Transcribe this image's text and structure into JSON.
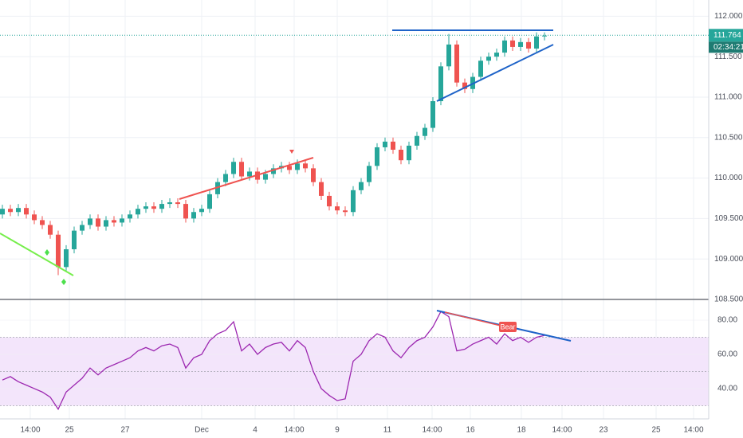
{
  "chart_data": {
    "type": "candlestick",
    "x": [
      0,
      1,
      2,
      3,
      4,
      5,
      6,
      7,
      8,
      9,
      10,
      11,
      12,
      13,
      14,
      15,
      16,
      17,
      18,
      19,
      20,
      21,
      22,
      23,
      24,
      25,
      26,
      27,
      28,
      29,
      30,
      31,
      32,
      33,
      34,
      35,
      36,
      37,
      38,
      39,
      40,
      41,
      42,
      43,
      44,
      45,
      46,
      47,
      48,
      49,
      50,
      51,
      52,
      53,
      54,
      55,
      56,
      57,
      58,
      59,
      60,
      61,
      62,
      63,
      64,
      65,
      66,
      67,
      68
    ],
    "open": [
      109.55,
      109.62,
      109.58,
      109.63,
      109.55,
      109.48,
      109.42,
      109.3,
      108.9,
      109.12,
      109.35,
      109.42,
      109.5,
      109.4,
      109.48,
      109.45,
      109.5,
      109.55,
      109.62,
      109.65,
      109.62,
      109.68,
      109.7,
      109.68,
      109.5,
      109.58,
      109.62,
      109.8,
      109.95,
      110.05,
      110.2,
      110.02,
      110.08,
      109.98,
      110.05,
      110.12,
      110.15,
      110.1,
      110.18,
      110.12,
      109.95,
      109.78,
      109.65,
      109.6,
      109.58,
      109.85,
      109.95,
      110.15,
      110.38,
      110.45,
      110.35,
      110.22,
      110.4,
      110.52,
      110.62,
      110.95,
      111.38,
      111.65,
      111.18,
      111.1,
      111.25,
      111.45,
      111.5,
      111.55,
      111.7,
      111.62,
      111.68,
      111.6,
      111.75
    ],
    "high": [
      109.67,
      109.67,
      109.68,
      109.68,
      109.6,
      109.53,
      109.47,
      109.35,
      109.17,
      109.4,
      109.47,
      109.55,
      109.55,
      109.53,
      109.53,
      109.55,
      109.6,
      109.67,
      109.7,
      109.7,
      109.73,
      109.75,
      109.75,
      109.73,
      109.63,
      109.67,
      109.85,
      110.0,
      110.1,
      110.25,
      110.25,
      110.13,
      110.13,
      110.1,
      110.17,
      110.2,
      110.2,
      110.23,
      110.23,
      110.17,
      110.0,
      109.83,
      109.7,
      109.65,
      109.9,
      110.0,
      110.2,
      110.43,
      110.5,
      110.5,
      110.4,
      110.45,
      110.57,
      110.67,
      111.0,
      111.43,
      111.78,
      111.7,
      111.23,
      111.3,
      111.5,
      111.55,
      111.6,
      111.75,
      111.75,
      111.73,
      111.73,
      111.8,
      111.8
    ],
    "low": [
      109.5,
      109.53,
      109.53,
      109.5,
      109.43,
      109.37,
      109.25,
      108.8,
      108.85,
      109.07,
      109.3,
      109.37,
      109.35,
      109.35,
      109.4,
      109.4,
      109.45,
      109.5,
      109.57,
      109.57,
      109.57,
      109.63,
      109.63,
      109.45,
      109.45,
      109.53,
      109.57,
      109.75,
      109.9,
      110.0,
      109.97,
      109.97,
      109.93,
      109.93,
      110.0,
      110.07,
      110.05,
      110.05,
      110.07,
      109.9,
      109.73,
      109.6,
      109.55,
      109.53,
      109.53,
      109.8,
      109.9,
      110.1,
      110.33,
      110.3,
      110.17,
      110.17,
      110.35,
      110.47,
      110.57,
      110.9,
      111.33,
      111.13,
      111.05,
      111.05,
      111.2,
      111.4,
      111.45,
      111.5,
      111.57,
      111.57,
      111.55,
      111.55,
      111.7
    ],
    "close": [
      109.62,
      109.58,
      109.63,
      109.55,
      109.48,
      109.42,
      109.3,
      108.9,
      109.12,
      109.35,
      109.42,
      109.5,
      109.4,
      109.48,
      109.45,
      109.5,
      109.55,
      109.62,
      109.65,
      109.62,
      109.68,
      109.7,
      109.68,
      109.5,
      109.58,
      109.62,
      109.8,
      109.95,
      110.05,
      110.2,
      110.02,
      110.08,
      109.98,
      110.05,
      110.12,
      110.15,
      110.1,
      110.18,
      110.12,
      109.95,
      109.78,
      109.65,
      109.6,
      109.58,
      109.85,
      109.95,
      110.15,
      110.38,
      110.45,
      110.35,
      110.22,
      110.4,
      110.52,
      110.62,
      110.95,
      111.38,
      111.65,
      111.18,
      111.1,
      111.25,
      111.45,
      111.5,
      111.55,
      111.7,
      111.62,
      111.68,
      111.6,
      111.75,
      111.76
    ],
    "up_color": "#26a69a",
    "down_color": "#ef5350",
    "xlim": [
      -0.3,
      88.6
    ],
    "xticks": [
      {
        "value": 3.5,
        "label": "14:00"
      },
      {
        "value": 8.4,
        "label": "25"
      },
      {
        "value": 15.4,
        "label": "27"
      },
      {
        "value": 25,
        "label": "Dec"
      },
      {
        "value": 31.7,
        "label": "4"
      },
      {
        "value": 36.6,
        "label": "14:00"
      },
      {
        "value": 42,
        "label": "9"
      },
      {
        "value": 48.3,
        "label": "11"
      },
      {
        "value": 53.9,
        "label": "14:00"
      },
      {
        "value": 58.7,
        "label": "16"
      },
      {
        "value": 65.1,
        "label": "18"
      },
      {
        "value": 70.2,
        "label": "14:00"
      },
      {
        "value": 75.4,
        "label": "23"
      },
      {
        "value": 82,
        "label": "25"
      },
      {
        "value": 86.7,
        "label": "14:00"
      }
    ],
    "ylim": [
      108.5,
      112.2
    ],
    "yticks": [
      {
        "value": 108.5,
        "label": "108.500"
      },
      {
        "value": 109,
        "label": "109.000"
      },
      {
        "value": 109.5,
        "label": "109.500"
      },
      {
        "value": 110,
        "label": "110.000"
      },
      {
        "value": 110.5,
        "label": "110.500"
      },
      {
        "value": 111,
        "label": "111.000"
      },
      {
        "value": 111.5,
        "label": "111.500"
      },
      {
        "value": 112,
        "label": "112.000"
      }
    ],
    "grid": true,
    "last_price": 111.764,
    "last_price_color": "#26a69a",
    "countdown": "02:34:21",
    "rsi": {
      "values": [
        45,
        47,
        44,
        42,
        40,
        38,
        35,
        28,
        38,
        42,
        46,
        52,
        48,
        52,
        54,
        56,
        58,
        62,
        64,
        62,
        65,
        66,
        64,
        52,
        58,
        60,
        68,
        72,
        74,
        79,
        62,
        66,
        60,
        64,
        66,
        67,
        62,
        68,
        64,
        50,
        40,
        36,
        33,
        34,
        56,
        60,
        68,
        72,
        70,
        62,
        58,
        64,
        68,
        70,
        76,
        85,
        82,
        62,
        63,
        66,
        68,
        70,
        66,
        72,
        68,
        70,
        67,
        70,
        71
      ],
      "color": "#9c27b0",
      "ylim": [
        22.3,
        91.6
      ],
      "yticks": [
        {
          "value": 40,
          "label": "40.00"
        },
        {
          "value": 60,
          "label": "60.00"
        },
        {
          "value": 80,
          "label": "80.00"
        }
      ],
      "levels": [
        30,
        50,
        70
      ],
      "band_color": "#f3e5fb",
      "annotation": "Bear"
    }
  }
}
